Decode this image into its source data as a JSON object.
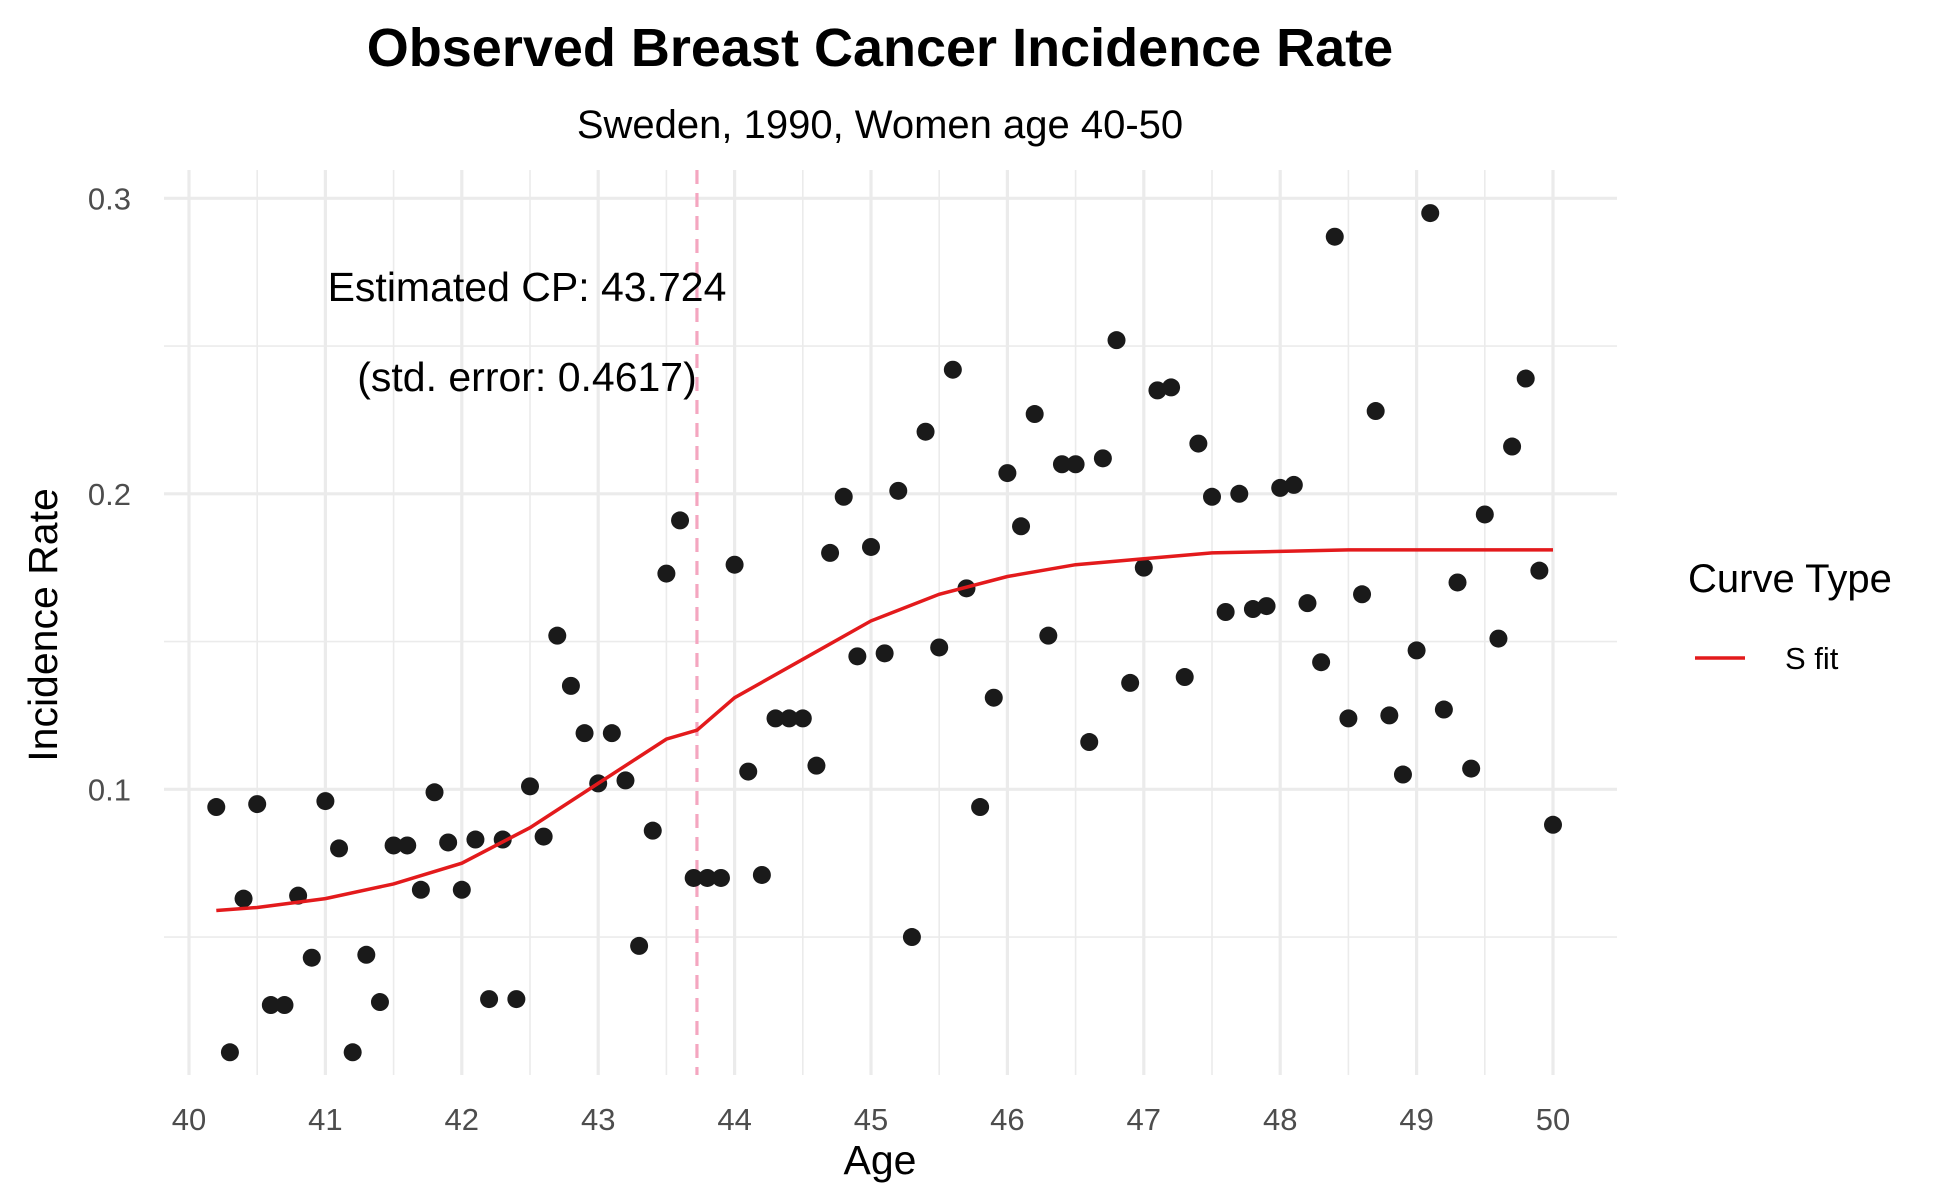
{
  "chart_data": {
    "type": "scatter",
    "title": "Observed Breast Cancer Incidence Rate",
    "subtitle": "Sweden, 1990, Women age 40-50",
    "xlabel": "Age",
    "ylabel": "Incidence Rate",
    "xlim": [
      40,
      50
    ],
    "ylim": [
      0.01,
      0.305
    ],
    "x_ticks": [
      40,
      41,
      42,
      43,
      44,
      45,
      46,
      47,
      48,
      49,
      50
    ],
    "y_ticks": [
      0.1,
      0.2,
      0.3
    ],
    "y_tick_labels": [
      "0.1",
      "0.2",
      "0.3"
    ],
    "grid": true,
    "colors": {
      "points": "#1a1a1a",
      "fit_line": "#e31a1c",
      "changepoint_line": "#f4a6c0",
      "grid": "#ebebeb"
    },
    "points": {
      "x": [
        40.2,
        40.3,
        40.4,
        40.5,
        40.6,
        40.7,
        40.8,
        40.9,
        41.0,
        41.1,
        41.2,
        41.3,
        41.4,
        41.5,
        41.6,
        41.7,
        41.8,
        41.9,
        42.0,
        42.1,
        42.2,
        42.3,
        42.4,
        42.5,
        42.6,
        42.7,
        42.8,
        42.9,
        43.0,
        43.1,
        43.2,
        43.3,
        43.4,
        43.5,
        43.6,
        43.7,
        43.8,
        43.9,
        44.0,
        44.1,
        44.2,
        44.3,
        44.4,
        44.5,
        44.6,
        44.7,
        44.8,
        44.9,
        45.0,
        45.1,
        45.2,
        45.3,
        45.4,
        45.5,
        45.6,
        45.7,
        45.8,
        45.9,
        46.0,
        46.1,
        46.2,
        46.3,
        46.4,
        46.5,
        46.6,
        46.7,
        46.8,
        46.9,
        47.0,
        47.1,
        47.2,
        47.3,
        47.4,
        47.5,
        47.6,
        47.7,
        47.8,
        47.9,
        48.0,
        48.1,
        48.2,
        48.3,
        48.4,
        48.5,
        48.6,
        48.7,
        48.8,
        48.9,
        49.0,
        49.1,
        49.2,
        49.3,
        49.4,
        49.5,
        49.6,
        49.7,
        49.8,
        49.9,
        50.0
      ],
      "y": [
        0.094,
        0.011,
        0.063,
        0.095,
        0.027,
        0.027,
        0.064,
        0.043,
        0.096,
        0.08,
        0.011,
        0.044,
        0.028,
        0.081,
        0.081,
        0.066,
        0.099,
        0.082,
        0.066,
        0.083,
        0.029,
        0.083,
        0.029,
        0.101,
        0.084,
        0.152,
        0.135,
        0.119,
        0.102,
        0.119,
        0.103,
        0.047,
        0.086,
        0.173,
        0.191,
        0.07,
        0.07,
        0.07,
        0.176,
        0.106,
        0.071,
        0.124,
        0.124,
        0.124,
        0.108,
        0.18,
        0.199,
        0.145,
        0.182,
        0.146,
        0.201,
        0.05,
        0.221,
        0.148,
        0.242,
        0.168,
        0.094,
        0.131,
        0.207,
        0.189,
        0.227,
        0.152,
        0.21,
        0.21,
        0.116,
        0.212,
        0.252,
        0.136,
        0.175,
        0.235,
        0.236,
        0.138,
        0.217,
        0.199,
        0.16,
        0.2,
        0.161,
        0.162,
        0.202,
        0.203,
        0.163,
        0.143,
        0.287,
        0.124,
        0.166,
        0.228,
        0.125,
        0.105,
        0.147,
        0.295,
        0.127,
        0.17,
        0.107,
        0.193,
        0.151,
        0.216,
        0.239,
        0.174,
        0.088
      ]
    },
    "series": [
      {
        "name": "S fit",
        "type": "line",
        "x": [
          40.2,
          40.5,
          41.0,
          41.5,
          42.0,
          42.5,
          43.0,
          43.5,
          43.724,
          44.0,
          44.5,
          45.0,
          45.5,
          46.0,
          46.5,
          47.0,
          47.5,
          48.0,
          48.5,
          49.0,
          49.5,
          50.0
        ],
        "y": [
          0.059,
          0.06,
          0.063,
          0.068,
          0.075,
          0.087,
          0.102,
          0.117,
          0.12,
          0.131,
          0.144,
          0.157,
          0.166,
          0.172,
          0.176,
          0.178,
          0.18,
          0.1805,
          0.181,
          0.181,
          0.181,
          0.181
        ]
      }
    ],
    "changepoint": {
      "x": 43.724,
      "style": "dashed"
    },
    "annotations": [
      "Estimated CP: 43.724",
      "(std. error: 0.4617)"
    ],
    "legend": {
      "title": "Curve Type",
      "position": "right",
      "entries": [
        "S fit"
      ]
    }
  }
}
